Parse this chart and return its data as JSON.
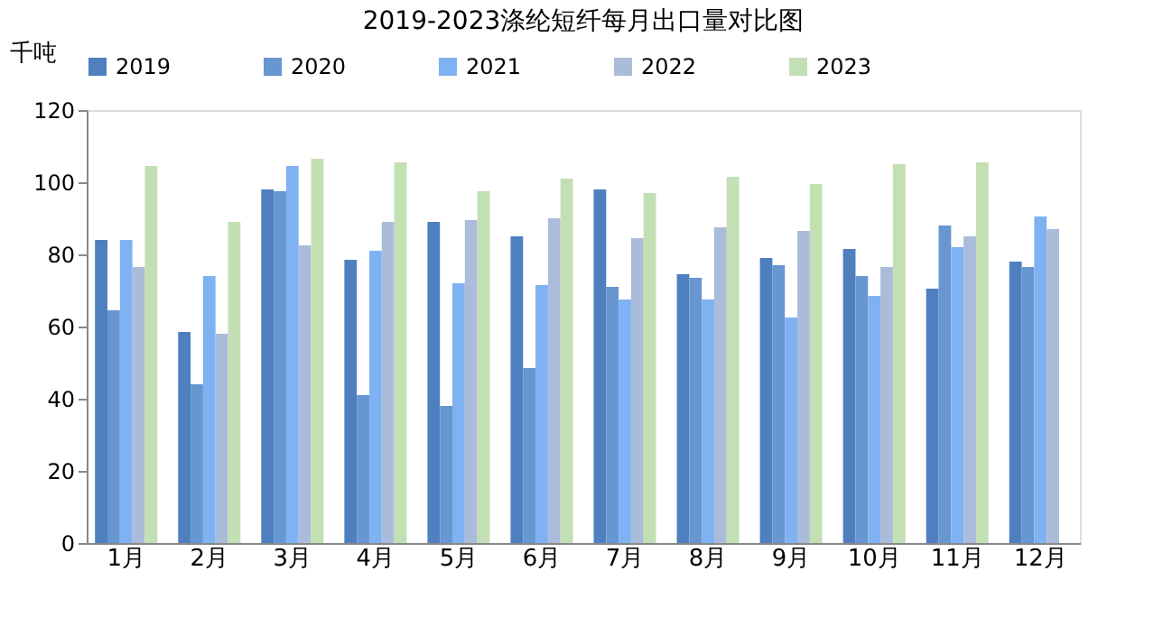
{
  "chart_data": {
    "type": "bar",
    "title": "2019-2023涤纶短纤每月出口量对比图",
    "ylabel": "千吨",
    "categories": [
      "1月",
      "2月",
      "3月",
      "4月",
      "5月",
      "6月",
      "7月",
      "8月",
      "9月",
      "10月",
      "11月",
      "12月"
    ],
    "series": [
      {
        "name": "2019",
        "color": "#4f7fbf",
        "values": [
          84,
          58.5,
          98,
          78.5,
          89,
          85,
          98,
          74.5,
          79,
          81.5,
          70.5,
          78
        ]
      },
      {
        "name": "2020",
        "color": "#6796d1",
        "values": [
          64.5,
          44,
          97.5,
          41,
          38,
          48.5,
          71,
          73.5,
          77,
          74,
          88,
          76.5
        ]
      },
      {
        "name": "2021",
        "color": "#7fb2f2",
        "values": [
          84,
          74,
          104.5,
          81,
          72,
          71.5,
          67.5,
          67.5,
          62.5,
          68.5,
          82,
          90.5
        ]
      },
      {
        "name": "2022",
        "color": "#aabcd9",
        "values": [
          76.5,
          58,
          82.5,
          89,
          89.5,
          90,
          84.5,
          87.5,
          86.5,
          76.5,
          85,
          87
        ]
      },
      {
        "name": "2023",
        "color": "#c3dfb4",
        "values": [
          104.5,
          89,
          106.5,
          105.5,
          97.5,
          101,
          97,
          101.5,
          99.5,
          105,
          105.5,
          null
        ]
      }
    ],
    "ylim": [
      0,
      120
    ],
    "yticks": [
      0,
      20,
      40,
      60,
      80,
      100,
      120
    ],
    "grid": false,
    "legend": "top"
  }
}
